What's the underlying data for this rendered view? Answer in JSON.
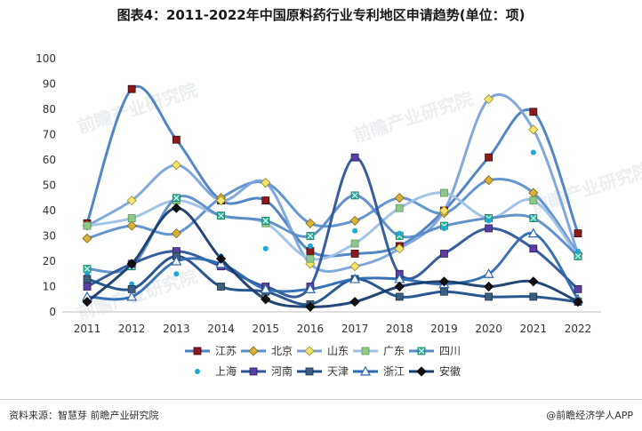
{
  "title": "图表4：2011-2022年中国原料药行业专利地区申请趋势(单位：项)",
  "watermark": "前瞻产业研究院",
  "footer": {
    "source": "资料来源：智慧芽 前瞻产业研究院",
    "brand": "@前瞻经济学人APP"
  },
  "chart_data": {
    "type": "line",
    "title": "图表4：2011-2022年中国原料药行业专利地区申请趋势(单位：项)",
    "xlabel": "",
    "ylabel": "",
    "x": [
      "2011",
      "2012",
      "2013",
      "2014",
      "2015",
      "2016",
      "2017",
      "2018",
      "2019",
      "2020",
      "2021",
      "2022"
    ],
    "ylim": [
      0,
      100
    ],
    "yticks": [
      0,
      10,
      20,
      30,
      40,
      50,
      60,
      70,
      80,
      90,
      100
    ],
    "grid": false,
    "smooth": true,
    "legend_position": "bottom",
    "series": [
      {
        "name": "江苏",
        "color": "#4a7fc1",
        "marker": "square-dark",
        "values": [
          35,
          88,
          68,
          44,
          44,
          24,
          23,
          26,
          40,
          61,
          79,
          31
        ]
      },
      {
        "name": "北京",
        "color": "#5b8fce",
        "marker": "diamond-gold",
        "values": [
          29,
          34,
          31,
          45,
          51,
          35,
          36,
          45,
          39,
          52,
          47,
          23
        ]
      },
      {
        "name": "山东",
        "color": "#7aa3d8",
        "marker": "diamond-yellow",
        "values": [
          34,
          44,
          58,
          44,
          51,
          19,
          18,
          25,
          40,
          84,
          72,
          23
        ]
      },
      {
        "name": "广东",
        "color": "#9ec0e6",
        "marker": "square-green",
        "values": [
          34,
          37,
          44,
          38,
          35,
          21,
          27,
          41,
          47,
          37,
          44,
          22
        ]
      },
      {
        "name": "四川",
        "color": "#5a8bc8",
        "marker": "square-teal",
        "values": [
          17,
          18,
          45,
          38,
          36,
          30,
          46,
          30,
          34,
          37,
          37,
          22
        ]
      },
      {
        "name": "上海",
        "color": "#2e5e96",
        "marker": "dot-cyan",
        "values": [
          15,
          11,
          15,
          22,
          25,
          26,
          32,
          31,
          33,
          36,
          63,
          24
        ]
      },
      {
        "name": "河南",
        "color": "#2c5597",
        "marker": "square-purple",
        "values": [
          10,
          19,
          24,
          18,
          10,
          10,
          61,
          15,
          23,
          33,
          25,
          9
        ]
      },
      {
        "name": "天津",
        "color": "#1f4e8a",
        "marker": "square-slate",
        "values": [
          13,
          9,
          22,
          10,
          8,
          3,
          13,
          6,
          8,
          6,
          6,
          4
        ]
      },
      {
        "name": "浙江",
        "color": "#2d6ab0",
        "marker": "triangle-white",
        "values": [
          6,
          6,
          20,
          19,
          9,
          9,
          13,
          13,
          11,
          15,
          31,
          5
        ]
      },
      {
        "name": "安徽",
        "color": "#173c6e",
        "marker": "diamond-black",
        "values": [
          4,
          19,
          41,
          21,
          5,
          2,
          4,
          10,
          12,
          10,
          12,
          4
        ]
      }
    ]
  }
}
